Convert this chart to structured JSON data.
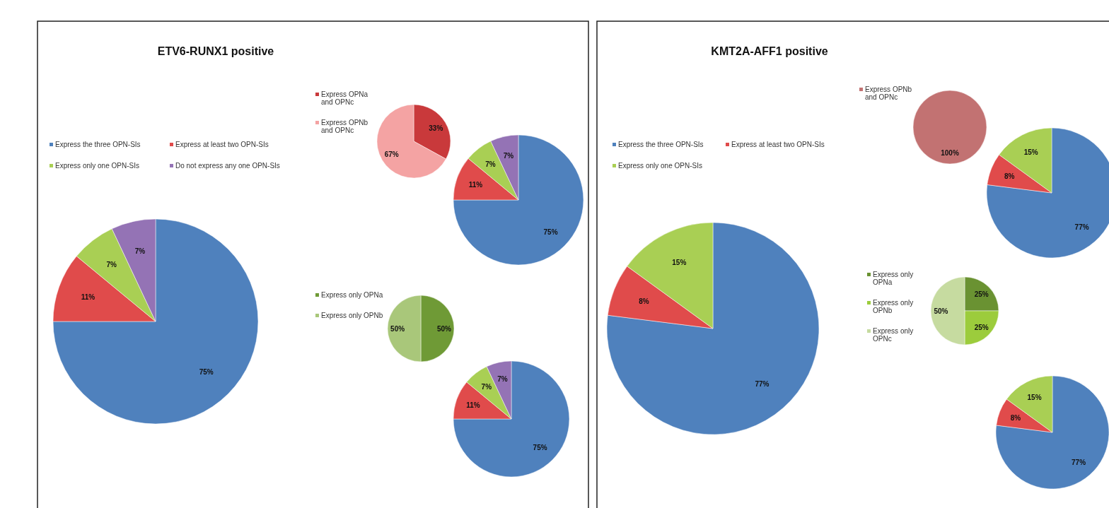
{
  "chart_data": [
    {
      "type": "pie",
      "title": "ETV6-RUNX1 positive",
      "categories": [
        "Express the three OPN-SIs",
        "Express at least two OPN-SIs",
        "Express only one OPN-SIs",
        "Do not express any one OPN-SIs"
      ],
      "values": [
        75,
        11,
        7,
        7
      ],
      "colors": [
        "#4f81bd",
        "#e04b4b",
        "#a9cf54",
        "#9473b5"
      ],
      "value_labels": [
        "75%",
        "11%",
        "7%",
        "7%"
      ],
      "legend": "top left"
    },
    {
      "type": "pie",
      "categories": [
        null,
        null,
        null,
        null
      ],
      "values": [
        75,
        11,
        7,
        7
      ],
      "colors": [
        "#4f81bd",
        "#e04b4b",
        "#a9cf54",
        "#9473b5"
      ],
      "value_labels": [
        "75%",
        "11%",
        "7%",
        "7%"
      ]
    },
    {
      "type": "pie",
      "categories": [
        "Express OPNa and OPNc",
        "Express OPNb and OPNc"
      ],
      "values": [
        33,
        67
      ],
      "colors": [
        "#c9393b",
        "#f4a3a3"
      ],
      "value_labels": [
        "33%",
        "67%"
      ],
      "legend": "left"
    },
    {
      "type": "pie",
      "categories": [
        null,
        null,
        null,
        null
      ],
      "values": [
        75,
        11,
        7,
        7
      ],
      "colors": [
        "#4f81bd",
        "#e04b4b",
        "#a9cf54",
        "#9473b5"
      ],
      "value_labels": [
        "75%",
        "11%",
        "7%",
        "7%"
      ]
    },
    {
      "type": "pie",
      "categories": [
        "Express only OPNa",
        "Express only OPNb"
      ],
      "values": [
        50,
        50
      ],
      "colors": [
        "#6f9a36",
        "#a9c77a"
      ],
      "value_labels": [
        "50%",
        "50%"
      ],
      "legend": "left"
    },
    {
      "type": "pie",
      "title": "KMT2A-AFF1 positive",
      "categories": [
        "Express the three OPN-SIs",
        "Express at least two OPN-SIs",
        "Express only one OPN-SIs"
      ],
      "values": [
        77,
        8,
        15
      ],
      "colors": [
        "#4f81bd",
        "#e04b4b",
        "#a9cf54"
      ],
      "value_labels": [
        "77%",
        "8%",
        "15%"
      ],
      "legend": "top left"
    },
    {
      "type": "pie",
      "categories": [
        null,
        null,
        null
      ],
      "values": [
        77,
        8,
        15
      ],
      "colors": [
        "#4f81bd",
        "#e04b4b",
        "#a9cf54"
      ],
      "value_labels": [
        "77%",
        "8%",
        "15%"
      ]
    },
    {
      "type": "pie",
      "categories": [
        "Express OPNb and OPNc"
      ],
      "values": [
        100
      ],
      "colors": [
        "#c27272"
      ],
      "value_labels": [
        "100%"
      ],
      "legend": "left"
    },
    {
      "type": "pie",
      "categories": [
        null,
        null,
        null
      ],
      "values": [
        77,
        8,
        15
      ],
      "colors": [
        "#4f81bd",
        "#e04b4b",
        "#a9cf54"
      ],
      "value_labels": [
        "77%",
        "8%",
        "15%"
      ]
    },
    {
      "type": "pie",
      "categories": [
        "Express only OPNa",
        "Express only OPNb",
        "Express only OPNc"
      ],
      "values": [
        25,
        25,
        50
      ],
      "colors": [
        "#6a9232",
        "#9ccc3c",
        "#c6dba0"
      ],
      "value_labels": [
        "25%",
        "25%",
        "50%"
      ],
      "legend": "left"
    }
  ]
}
